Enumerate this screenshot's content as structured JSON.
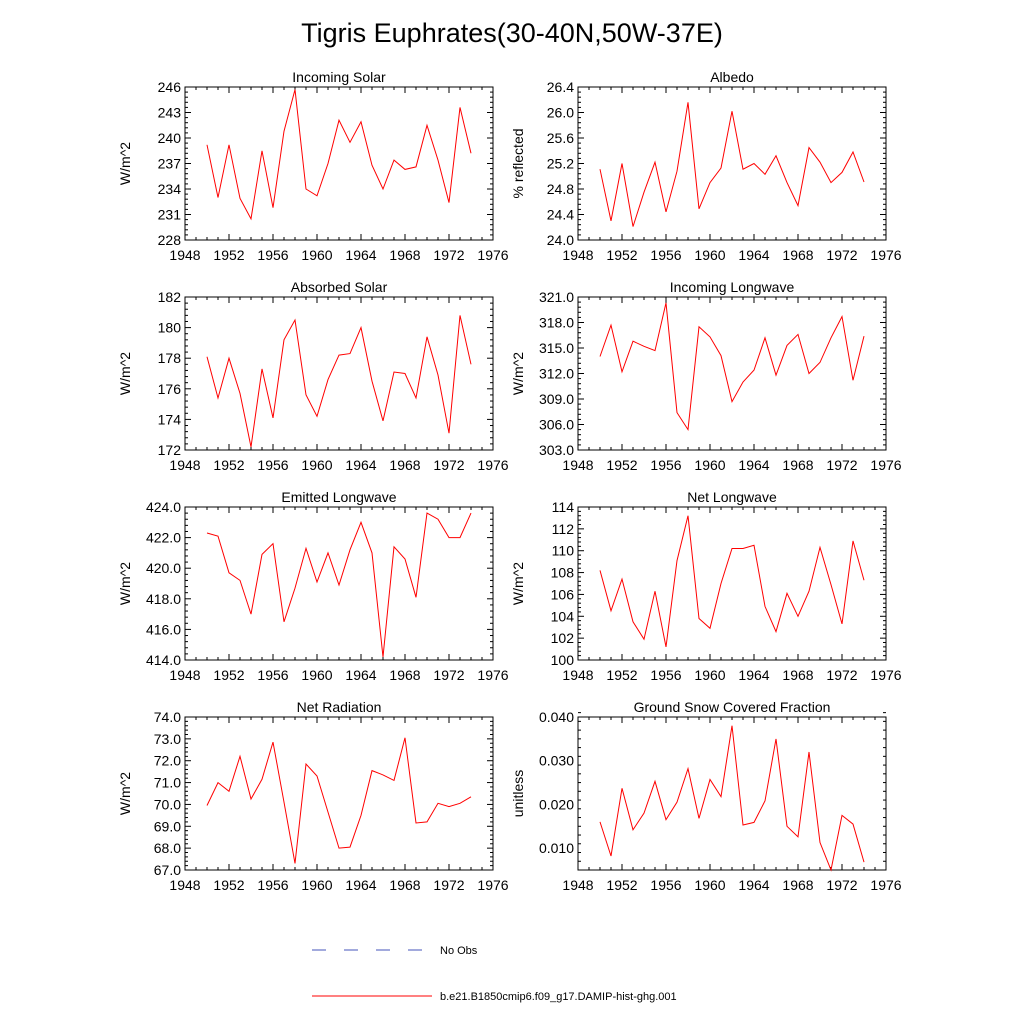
{
  "title": "Tigris Euphrates(30-40N,50W-37E)",
  "legend": {
    "entries": [
      {
        "label": "No Obs",
        "color": "#4455bb",
        "style": "dashed"
      },
      {
        "label": "b.e21.B1850cmip6.f09_g17.DAMIP-hist-ghg.001",
        "color": "#ff0000",
        "style": "solid"
      }
    ],
    "placement": "bottom-center"
  },
  "chart_data": [
    {
      "type": "line",
      "title": "Incoming Solar",
      "xlabel": "",
      "ylabel": "W/m^2",
      "xlim": [
        1948,
        1976
      ],
      "ylim": [
        228,
        246
      ],
      "decimals": 0,
      "xticks": [
        1948,
        1952,
        1956,
        1960,
        1964,
        1968,
        1972,
        1976
      ],
      "yticks": [
        228,
        231,
        234,
        237,
        240,
        243,
        246
      ],
      "series": [
        {
          "x": [
            1950,
            1951,
            1952,
            1953,
            1954,
            1955,
            1956,
            1957,
            1958,
            1959,
            1960,
            1961,
            1962,
            1963,
            1964,
            1965,
            1966,
            1967,
            1968,
            1969,
            1970,
            1971,
            1972,
            1973,
            1974
          ],
          "y": [
            239.2,
            233.0,
            239.2,
            232.9,
            230.5,
            238.5,
            231.8,
            240.8,
            245.7,
            234.0,
            233.2,
            237.0,
            242.1,
            239.5,
            241.9,
            236.8,
            234.0,
            237.4,
            236.3,
            236.6,
            241.5,
            237.4,
            232.4,
            243.6,
            238.2
          ]
        }
      ]
    },
    {
      "type": "line",
      "title": "Albedo",
      "xlabel": "",
      "ylabel": "% reflected",
      "xlim": [
        1948,
        1976
      ],
      "ylim": [
        24.0,
        26.4
      ],
      "decimals": 1,
      "xticks": [
        1948,
        1952,
        1956,
        1960,
        1964,
        1968,
        1972,
        1976
      ],
      "yticks": [
        24.0,
        24.4,
        24.8,
        25.2,
        25.6,
        26.0,
        26.4
      ],
      "series": [
        {
          "x": [
            1950,
            1951,
            1952,
            1953,
            1954,
            1955,
            1956,
            1957,
            1958,
            1959,
            1960,
            1961,
            1962,
            1963,
            1964,
            1965,
            1966,
            1967,
            1968,
            1969,
            1970,
            1971,
            1972,
            1973,
            1974
          ],
          "y": [
            25.11,
            24.3,
            25.2,
            24.21,
            24.75,
            25.22,
            24.44,
            25.08,
            26.16,
            24.49,
            24.9,
            25.13,
            26.02,
            25.11,
            25.2,
            25.03,
            25.32,
            24.9,
            24.54,
            25.45,
            25.22,
            24.9,
            25.06,
            25.38,
            24.91
          ]
        }
      ]
    },
    {
      "type": "line",
      "title": "Absorbed Solar",
      "xlabel": "",
      "ylabel": "W/m^2",
      "xlim": [
        1948,
        1976
      ],
      "ylim": [
        172,
        182
      ],
      "decimals": 0,
      "xticks": [
        1948,
        1952,
        1956,
        1960,
        1964,
        1968,
        1972,
        1976
      ],
      "yticks": [
        172,
        174,
        176,
        178,
        180,
        182
      ],
      "series": [
        {
          "x": [
            1950,
            1951,
            1952,
            1953,
            1954,
            1955,
            1956,
            1957,
            1958,
            1959,
            1960,
            1961,
            1962,
            1963,
            1964,
            1965,
            1966,
            1967,
            1968,
            1969,
            1970,
            1971,
            1972,
            1973,
            1974
          ],
          "y": [
            178.1,
            175.4,
            178.0,
            175.7,
            172.2,
            177.3,
            174.1,
            179.2,
            180.5,
            175.6,
            174.2,
            176.6,
            178.2,
            178.3,
            180.0,
            176.5,
            173.9,
            177.1,
            177.0,
            175.4,
            179.4,
            176.9,
            173.1,
            180.8,
            177.6
          ]
        }
      ]
    },
    {
      "type": "line",
      "title": "Incoming Longwave",
      "xlabel": "",
      "ylabel": "W/m^2",
      "xlim": [
        1948,
        1976
      ],
      "ylim": [
        303.0,
        321.0
      ],
      "decimals": 1,
      "xticks": [
        1948,
        1952,
        1956,
        1960,
        1964,
        1968,
        1972,
        1976
      ],
      "yticks": [
        303.0,
        306.0,
        309.0,
        312.0,
        315.0,
        318.0,
        321.0
      ],
      "series": [
        {
          "x": [
            1950,
            1951,
            1952,
            1953,
            1954,
            1955,
            1956,
            1957,
            1958,
            1959,
            1960,
            1961,
            1962,
            1963,
            1964,
            1965,
            1966,
            1967,
            1968,
            1969,
            1970,
            1971,
            1972,
            1973,
            1974
          ],
          "y": [
            314.0,
            317.7,
            312.2,
            315.8,
            315.2,
            314.7,
            320.3,
            307.4,
            305.4,
            317.5,
            316.3,
            314.1,
            308.7,
            311.0,
            312.4,
            316.2,
            311.8,
            315.3,
            316.6,
            312.0,
            313.3,
            316.2,
            318.7,
            311.2,
            316.4
          ]
        }
      ]
    },
    {
      "type": "line",
      "title": "Emitted Longwave",
      "xlabel": "",
      "ylabel": "W/m^2",
      "xlim": [
        1948,
        1976
      ],
      "ylim": [
        414.0,
        424.0
      ],
      "decimals": 1,
      "xticks": [
        1948,
        1952,
        1956,
        1960,
        1964,
        1968,
        1972,
        1976
      ],
      "yticks": [
        414.0,
        416.0,
        418.0,
        420.0,
        422.0,
        424.0
      ],
      "series": [
        {
          "x": [
            1950,
            1951,
            1952,
            1953,
            1954,
            1955,
            1956,
            1957,
            1958,
            1959,
            1960,
            1961,
            1962,
            1963,
            1964,
            1965,
            1966,
            1967,
            1968,
            1969,
            1970,
            1971,
            1972,
            1973,
            1974
          ],
          "y": [
            422.3,
            422.1,
            419.7,
            419.2,
            417.0,
            420.9,
            421.6,
            416.5,
            418.7,
            421.3,
            419.1,
            421.0,
            418.9,
            421.2,
            423.0,
            421.0,
            414.2,
            421.4,
            420.6,
            418.1,
            423.6,
            423.2,
            422.0,
            422.0,
            423.6
          ]
        }
      ]
    },
    {
      "type": "line",
      "title": "Net Longwave",
      "xlabel": "",
      "ylabel": "W/m^2",
      "xlim": [
        1948,
        1976
      ],
      "ylim": [
        100,
        114
      ],
      "decimals": 0,
      "xticks": [
        1948,
        1952,
        1956,
        1960,
        1964,
        1968,
        1972,
        1976
      ],
      "yticks": [
        100,
        102,
        104,
        106,
        108,
        110,
        112,
        114
      ],
      "series": [
        {
          "x": [
            1950,
            1951,
            1952,
            1953,
            1954,
            1955,
            1956,
            1957,
            1958,
            1959,
            1960,
            1961,
            1962,
            1963,
            1964,
            1965,
            1966,
            1967,
            1968,
            1969,
            1970,
            1971,
            1972,
            1973,
            1974
          ],
          "y": [
            108.2,
            104.5,
            107.4,
            103.5,
            101.9,
            106.3,
            101.2,
            109.1,
            113.2,
            103.8,
            102.9,
            107.0,
            110.2,
            110.2,
            110.5,
            104.9,
            102.6,
            106.1,
            104.0,
            106.3,
            110.3,
            106.9,
            103.3,
            110.9,
            107.3
          ]
        }
      ]
    },
    {
      "type": "line",
      "title": "Net Radiation",
      "xlabel": "",
      "ylabel": "W/m^2",
      "xlim": [
        1948,
        1976
      ],
      "ylim": [
        67.0,
        74.0
      ],
      "decimals": 1,
      "xticks": [
        1948,
        1952,
        1956,
        1960,
        1964,
        1968,
        1972,
        1976
      ],
      "yticks": [
        67.0,
        68.0,
        69.0,
        70.0,
        71.0,
        72.0,
        73.0,
        74.0
      ],
      "series": [
        {
          "x": [
            1950,
            1951,
            1952,
            1953,
            1954,
            1955,
            1956,
            1957,
            1958,
            1959,
            1960,
            1961,
            1962,
            1963,
            1964,
            1965,
            1966,
            1967,
            1968,
            1969,
            1970,
            1971,
            1972,
            1973,
            1974
          ],
          "y": [
            69.95,
            71.0,
            70.6,
            72.2,
            70.25,
            71.15,
            72.85,
            70.1,
            67.3,
            71.85,
            71.3,
            69.65,
            68.0,
            68.05,
            69.5,
            71.55,
            71.35,
            71.1,
            73.05,
            69.15,
            69.2,
            70.05,
            69.9,
            70.05,
            70.35
          ]
        }
      ]
    },
    {
      "type": "line",
      "title": "Ground Snow Covered Fraction",
      "xlabel": "",
      "ylabel": "unitless",
      "xlim": [
        1948,
        1976
      ],
      "ylim": [
        0.005,
        0.04
      ],
      "decimals": 3,
      "xticks": [
        1948,
        1952,
        1956,
        1960,
        1964,
        1968,
        1972,
        1976
      ],
      "yticks": [
        0.01,
        0.02,
        0.03,
        0.04
      ],
      "series": [
        {
          "x": [
            1950,
            1951,
            1952,
            1953,
            1954,
            1955,
            1956,
            1957,
            1958,
            1959,
            1960,
            1961,
            1962,
            1963,
            1964,
            1965,
            1966,
            1967,
            1968,
            1969,
            1970,
            1971,
            1972,
            1973,
            1974
          ],
          "y": [
            0.016,
            0.0082,
            0.0237,
            0.0142,
            0.018,
            0.0253,
            0.0165,
            0.0205,
            0.0282,
            0.0168,
            0.0257,
            0.0218,
            0.038,
            0.0153,
            0.0159,
            0.0208,
            0.035,
            0.015,
            0.0126,
            0.032,
            0.0113,
            0.005,
            0.0175,
            0.0155,
            0.0068
          ]
        }
      ]
    }
  ]
}
